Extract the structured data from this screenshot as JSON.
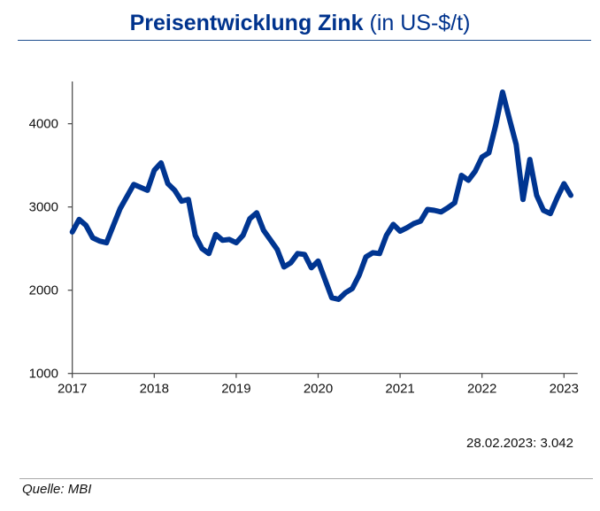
{
  "chart_data": {
    "type": "line",
    "title": "Preisentwicklung Zink",
    "title_unit": "(in US-$/t)",
    "xlabel": "",
    "ylabel": "",
    "ylim": [
      1000,
      4500
    ],
    "yticks": [
      1000,
      2000,
      3000,
      4000
    ],
    "xticks": [
      "2017",
      "2018",
      "2019",
      "2020",
      "2021",
      "2022",
      "2023"
    ],
    "xlim": [
      "2017-01",
      "2023-03"
    ],
    "grid": false,
    "line_color": "#003591",
    "series": [
      {
        "x": [
          "2017-01",
          "2017-02",
          "2017-03",
          "2017-04",
          "2017-05",
          "2017-06",
          "2017-08",
          "2017-10",
          "2017-12",
          "2018-01",
          "2018-02",
          "2018-03",
          "2018-04",
          "2018-05",
          "2018-06",
          "2018-07",
          "2018-08",
          "2018-09",
          "2018-10",
          "2018-11",
          "2018-12",
          "2019-01",
          "2019-02",
          "2019-03",
          "2019-04",
          "2019-05",
          "2019-07",
          "2019-08",
          "2019-09",
          "2019-10",
          "2019-11",
          "2019-12",
          "2020-01",
          "2020-03",
          "2020-04",
          "2020-05",
          "2020-06",
          "2020-07",
          "2020-08",
          "2020-09",
          "2020-10",
          "2020-11",
          "2020-12",
          "2021-01",
          "2021-02",
          "2021-03",
          "2021-04",
          "2021-05",
          "2021-06",
          "2021-07",
          "2021-08",
          "2021-09",
          "2021-10",
          "2021-11",
          "2021-12",
          "2022-01",
          "2022-02",
          "2022-03",
          "2022-04",
          "2022-05",
          "2022-06",
          "2022-07",
          "2022-08",
          "2022-09",
          "2022-10",
          "2022-11",
          "2022-12",
          "2023-01",
          "2023-02"
        ],
        "y": [
          2700,
          2850,
          2780,
          2630,
          2590,
          2570,
          2980,
          3270,
          3200,
          3440,
          3530,
          3280,
          3200,
          3070,
          3090,
          2660,
          2500,
          2440,
          2670,
          2600,
          2610,
          2570,
          2660,
          2860,
          2930,
          2720,
          2490,
          2280,
          2330,
          2440,
          2430,
          2270,
          2350,
          1910,
          1890,
          1970,
          2020,
          2180,
          2400,
          2450,
          2440,
          2660,
          2790,
          2710,
          2750,
          2800,
          2830,
          2970,
          2960,
          2940,
          2990,
          3050,
          3380,
          3320,
          3430,
          3600,
          3650,
          3980,
          4380,
          4060,
          3750,
          3090,
          3570,
          3140,
          2960,
          2920,
          3110,
          3280,
          3140
        ]
      }
    ]
  },
  "annotation": "28.02.2023: 3.042",
  "source": "Quelle: MBI"
}
